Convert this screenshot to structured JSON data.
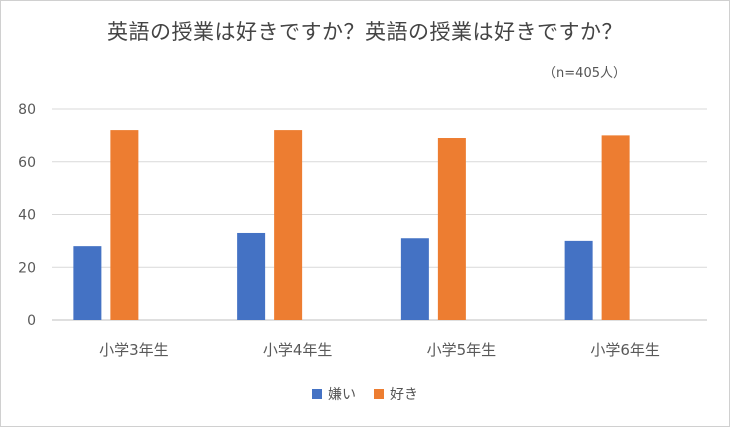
{
  "chart_data": {
    "type": "bar",
    "title": "英語の授業は好きですか？英語の授業は好きですか？",
    "subtitle": "（n=405人）",
    "categories": [
      "小学3年生",
      "小学4年生",
      "小学5年生",
      "小学6年生"
    ],
    "series": [
      {
        "name": "嫌い",
        "color": "#4472C4",
        "values": [
          28,
          33,
          31,
          30
        ]
      },
      {
        "name": "好き",
        "color": "#ED7D31",
        "values": [
          72,
          72,
          69,
          70
        ]
      }
    ],
    "ylim": [
      0,
      80
    ],
    "yticks": [
      0,
      20,
      40,
      60,
      80
    ],
    "grid": true,
    "legend_position": "bottom"
  }
}
